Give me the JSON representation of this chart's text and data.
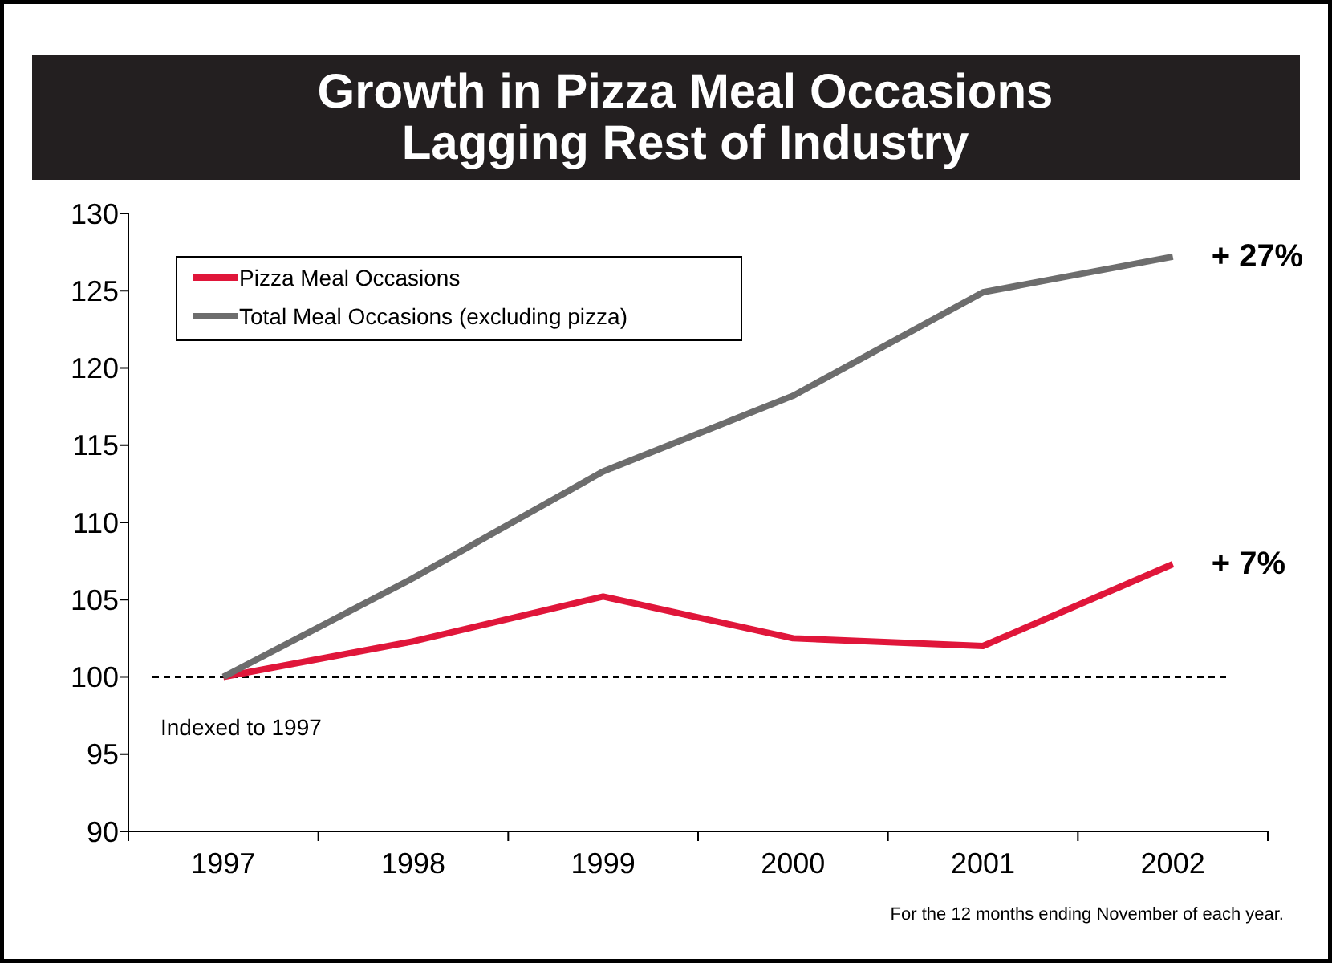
{
  "chart_data": {
    "type": "line",
    "title": "Growth in Pizza Meal Occasions\nLagging Rest of Industry",
    "categories": [
      "1997",
      "1998",
      "1999",
      "2000",
      "2001",
      "2002"
    ],
    "series": [
      {
        "name": "Pizza Meal Occasions",
        "color": "#e0163a",
        "values": [
          100,
          102.3,
          105.2,
          102.5,
          102,
          107.3
        ]
      },
      {
        "name": "Total Meal Occasions (excluding pizza)",
        "color": "#6d6d6d",
        "values": [
          100,
          106.4,
          113.3,
          118.2,
          124.9,
          127.2
        ]
      }
    ],
    "ylim": [
      90,
      130
    ],
    "yticks": [
      90,
      95,
      100,
      105,
      110,
      115,
      120,
      125,
      130
    ],
    "grid": false,
    "legend": "top left",
    "marker": "none",
    "line_style": "solid",
    "ref_lines": [
      {
        "axis": "y",
        "value": 100,
        "label": "Indexed to 1997",
        "color": "#000000",
        "line_style": "dashed"
      }
    ],
    "annotations": [
      {
        "text": "+ 27%",
        "x": "2002",
        "y": 127.2
      },
      {
        "text": "+ 7%",
        "x": "2002",
        "y": 107.3
      },
      "For the 12 months ending November of each year."
    ]
  }
}
